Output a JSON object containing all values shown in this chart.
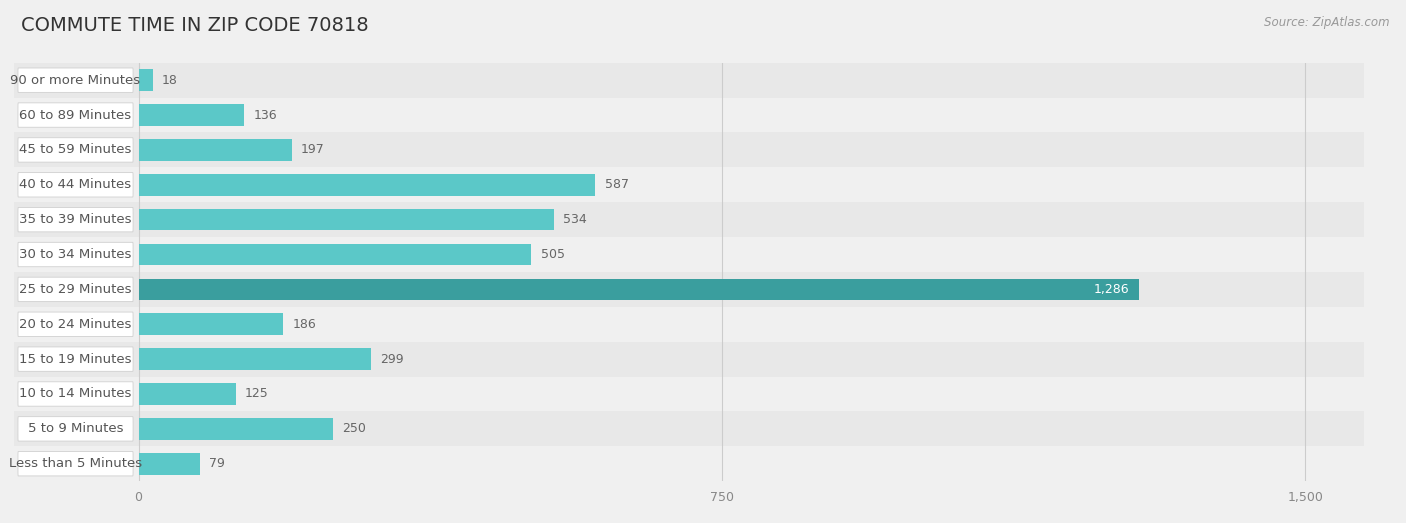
{
  "title": "COMMUTE TIME IN ZIP CODE 70818",
  "source": "Source: ZipAtlas.com",
  "categories": [
    "Less than 5 Minutes",
    "5 to 9 Minutes",
    "10 to 14 Minutes",
    "15 to 19 Minutes",
    "20 to 24 Minutes",
    "25 to 29 Minutes",
    "30 to 34 Minutes",
    "35 to 39 Minutes",
    "40 to 44 Minutes",
    "45 to 59 Minutes",
    "60 to 89 Minutes",
    "90 or more Minutes"
  ],
  "values": [
    18,
    136,
    197,
    587,
    534,
    505,
    1286,
    186,
    299,
    125,
    250,
    79
  ],
  "bar_color_normal": "#5bc8c8",
  "bar_color_highlight": "#3a9e9e",
  "highlight_index": 6,
  "xlim_max": 1500,
  "xticks": [
    0,
    750,
    1500
  ],
  "xtick_labels": [
    "0",
    "750",
    "1,500"
  ],
  "background_color": "#f0f0f0",
  "row_color_even": "#e8e8e8",
  "row_color_odd": "#f0f0f0",
  "bar_row_color_even": "#e8e8e8",
  "bar_row_color_odd": "#f0f0f0",
  "title_fontsize": 14,
  "label_fontsize": 9.5,
  "value_fontsize": 9,
  "source_fontsize": 8.5,
  "title_color": "#333333",
  "label_color": "#555555",
  "value_color_normal": "#666666",
  "value_color_highlight": "#ffffff",
  "source_color": "#999999",
  "grid_color": "#cccccc",
  "label_box_color": "#ffffff",
  "label_box_edge_color": "#d0d0d0"
}
